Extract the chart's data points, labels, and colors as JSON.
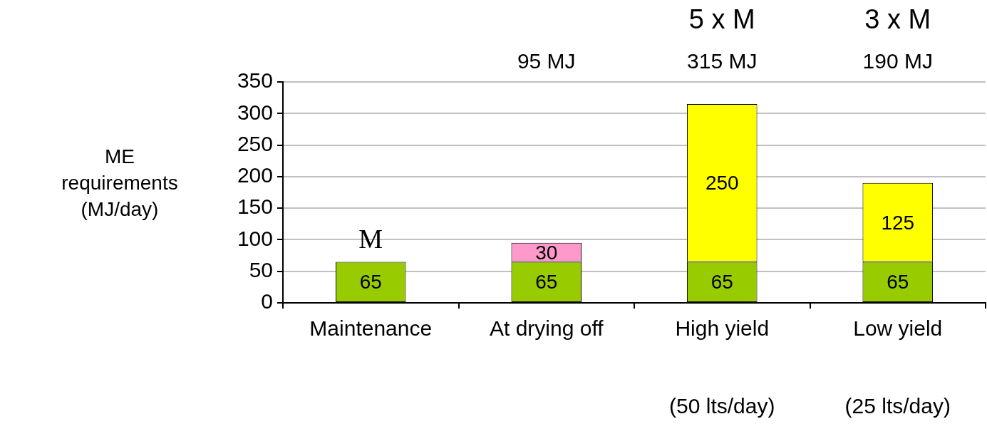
{
  "chart_data": {
    "type": "bar",
    "stacked": true,
    "ylabel": "ME requirements (MJ/day)",
    "categories": [
      "Maintenance",
      "At drying off",
      "High yield",
      "Low yield"
    ],
    "series": [
      {
        "color": "#99cc00",
        "values": [
          65,
          65,
          65,
          65
        ]
      },
      {
        "color": "#ff99cc",
        "values": [
          null,
          30,
          null,
          null
        ]
      },
      {
        "color": "#ffff00",
        "values": [
          null,
          null,
          250,
          125
        ]
      }
    ],
    "ylim": [
      0,
      350
    ],
    "yticks": [
      0,
      50,
      100,
      150,
      200,
      250,
      300,
      350
    ],
    "grid": "y",
    "legend": false,
    "data_labels": true,
    "annotations": [
      {
        "text": "M",
        "x": "Maintenance",
        "y": 65
      },
      "95 MJ",
      "5 x M",
      "315 MJ",
      "3 x M",
      "190 MJ",
      "(50 lts/day)",
      "(25 lts/day)"
    ]
  }
}
